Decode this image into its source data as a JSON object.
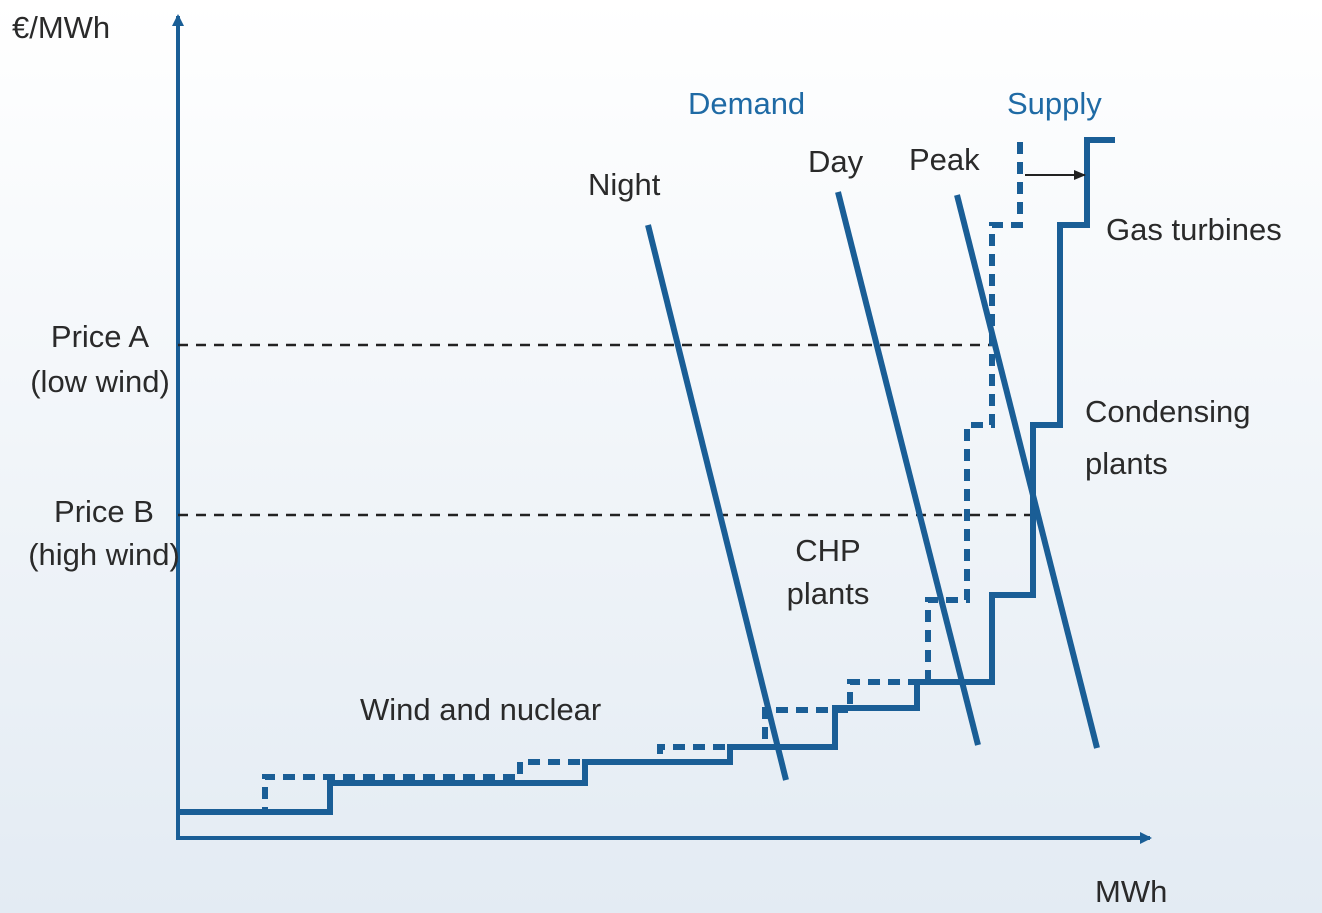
{
  "axes": {
    "y_label": "€/MWh",
    "x_label": "MWh"
  },
  "headers": {
    "demand": "Demand",
    "supply": "Supply"
  },
  "demand_curves": [
    "Night",
    "Day",
    "Peak"
  ],
  "prices": [
    {
      "name": "Price A",
      "note": "(low wind)"
    },
    {
      "name": "Price B",
      "note": "(high wind)"
    }
  ],
  "plant_types": {
    "gas": "Gas turbines",
    "condensing": [
      "Condensing",
      "plants"
    ],
    "chp": [
      "CHP",
      "plants"
    ],
    "wind_nuclear": "Wind and nuclear"
  }
}
